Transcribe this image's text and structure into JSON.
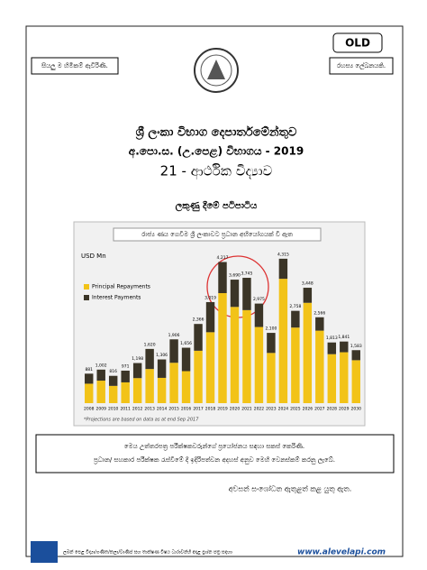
{
  "header": {
    "badge": "OLD",
    "left_note": "සියලු ම හිමිකම් ඇවිරිණි.",
    "right_note": "රහස්‍ය ලේඛනයකි."
  },
  "title": {
    "department": "ශ්‍රී ලංකා විභාග දෙපාර්තමේන්තුව",
    "exam": "අ.පො.ස. (උ.පෙළ) විභාගය - 2019",
    "subject": "21 - ආර්ථික විද්‍යාව",
    "scheme": "ලකුණු දීමේ පටිපාටිය"
  },
  "chart_data": {
    "type": "stacked-bar",
    "caption": "රාජ්‍ය ණය ගෙවීම ශ්‍රී ලංකාවට ප්‍රධාන අභියෝගයක් වී ඇත",
    "y_label": "USD Mn",
    "categories": [
      "2008",
      "2009",
      "2010",
      "2011",
      "2012",
      "2013",
      "2014",
      "2015",
      "2016",
      "2017",
      "2018",
      "2019",
      "2020",
      "2021",
      "2022",
      "2023",
      "2024",
      "2025",
      "2026",
      "2027",
      "2028",
      "2029",
      "2030"
    ],
    "series": [
      {
        "name": "Principal Repayments",
        "color": "#f2c318",
        "values": [
          581,
          672,
          516,
          621,
          748,
          1020,
          756,
          1206,
          956,
          1566,
          2119,
          3287,
          2875,
          2779,
          2275,
          1500,
          3715,
          2258,
          2998,
          2166,
          1463,
          1521,
          1283
        ]
      },
      {
        "name": "Interest Payments",
        "color": "#3b3527",
        "values": [
          300,
          330,
          300,
          350,
          450,
          600,
          550,
          700,
          700,
          800,
          900,
          930,
          815,
          966,
          700,
          600,
          600,
          500,
          450,
          400,
          350,
          320,
          300
        ]
      }
    ],
    "total_labels": [
      "881",
      "1,002",
      "816",
      "971",
      "1,198",
      "1,620",
      "1,306",
      "1,906",
      "1,656",
      "2,366",
      "3,019",
      "4,217",
      "3,690",
      "3,745",
      "2,975",
      "2,100",
      "4,315",
      "2,758",
      "3,448",
      "2,566",
      "1,813",
      "1,841",
      "1,583"
    ],
    "ylim": [
      0,
      4500
    ],
    "footnote": "*Projections are based on data as at end Sep 2017"
  },
  "notice": {
    "line1": "මෙය උත්තරපත්‍ර පරීක්ෂකවරුන්ගේ ප්‍රයෝජනය සඳහා සකස් කෙරිණි.",
    "line2": "ප්‍රධාන/ සහකාර පරීක්ෂක රැස්වීමේ දී ඉදිරිපත්වන අදහස් අනුව මෙහි වෙනස්කම් කරනු ලැබේ."
  },
  "revision_note": "අවසන් සංශෝධන ඇතුළත් කළ යුතු ඇත.",
  "footer": {
    "text": "ලබන් පෙළ විද්‍යා/ගණිත/කලා/වාණිජ සහ තාක්ෂණ විෂය ධාරාවන්හි අදාළ ප්‍රශ්න පත්‍ර සඳහා",
    "site": "www.alevelapi.com"
  }
}
